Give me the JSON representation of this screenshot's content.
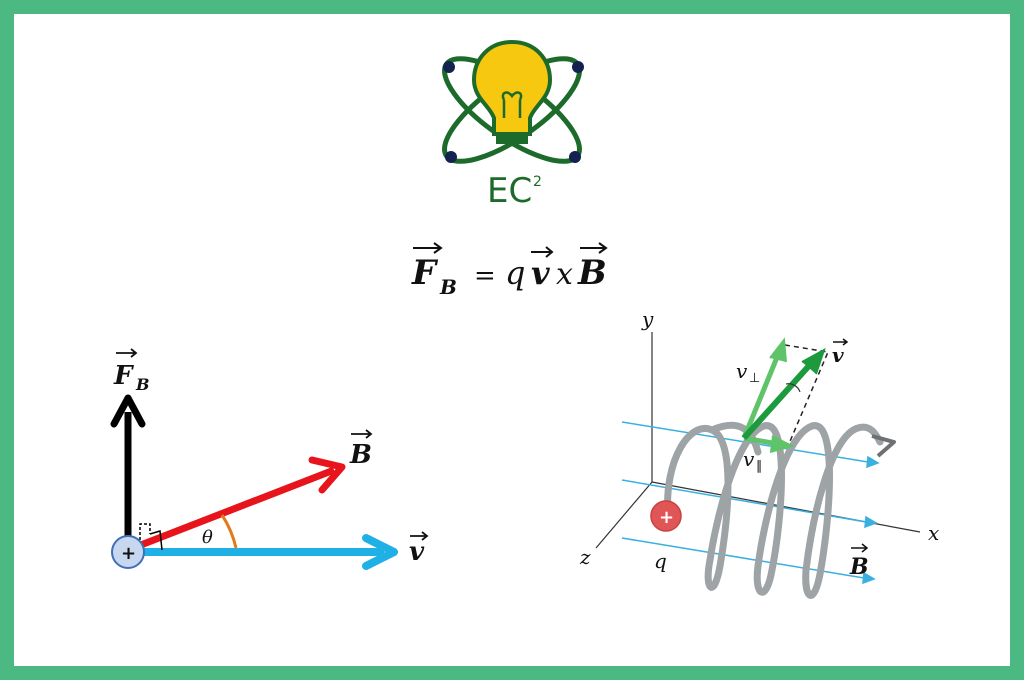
{
  "logo": {
    "text_main": "EC",
    "text_sup": "2"
  },
  "equation": {
    "lhs": "F",
    "lhs_sub": "B",
    "equals": "=",
    "q": "q",
    "v": "v",
    "cross": "x",
    "b": "B"
  },
  "left_diagram": {
    "force_label": "F",
    "force_sub": "B",
    "field_label": "B",
    "velocity_label": "v",
    "angle_label": "θ",
    "charge_sign": "+",
    "colors": {
      "force": "#000000",
      "field": "#e8141b",
      "velocity": "#1fb1e6",
      "angle": "#e07b1a",
      "charge": "#c8d7f0"
    }
  },
  "right_diagram": {
    "axis_y": "y",
    "axis_x": "x",
    "axis_z": "z",
    "charge_label": "q",
    "charge_sign": "+",
    "v_label": "v",
    "v_perp": "v",
    "v_perp_sub": "⊥",
    "v_par": "v",
    "v_par_sub": "∥",
    "field_label": "B",
    "colors": {
      "helix": "#9ea3a6",
      "field_lines": "#39b0e0",
      "velocity": "#2fa84f",
      "charge": "#e05555"
    }
  }
}
